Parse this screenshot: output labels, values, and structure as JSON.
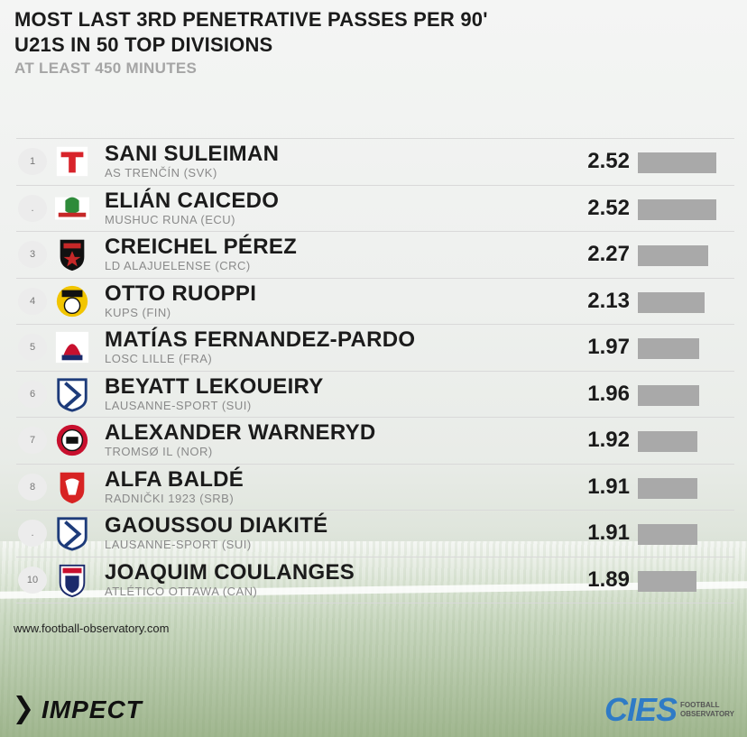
{
  "chart_data": {
    "type": "bar",
    "title": "MOST LAST 3RD PENETRATIVE PASSES PER 90'",
    "subtitle_lines": [
      "U21S IN 50 TOP DIVISIONS",
      "AT LEAST 450 MINUTES"
    ],
    "xlabel": "",
    "ylabel": "",
    "xlim": [
      0,
      2.52
    ],
    "rows": [
      {
        "rank": "1",
        "player": "SANI SULEIMAN",
        "club": "AS TRENČÍN (SVK)",
        "value": 2.52,
        "value_label": "2.52",
        "logo_icon": "as-trencin-logo-icon"
      },
      {
        "rank": ".",
        "player": "ELIÁN CAICEDO",
        "club": "MUSHUC RUNA (ECU)",
        "value": 2.52,
        "value_label": "2.52",
        "logo_icon": "mushuc-runa-logo-icon"
      },
      {
        "rank": "3",
        "player": "CREICHEL PÉREZ",
        "club": "LD ALAJUELENSE (CRC)",
        "value": 2.27,
        "value_label": "2.27",
        "logo_icon": "alajuelense-logo-icon"
      },
      {
        "rank": "4",
        "player": "OTTO RUOPPI",
        "club": "KUPS (FIN)",
        "value": 2.13,
        "value_label": "2.13",
        "logo_icon": "kups-logo-icon"
      },
      {
        "rank": "5",
        "player": "MATÍAS FERNANDEZ-PARDO",
        "club": "LOSC LILLE (FRA)",
        "value": 1.97,
        "value_label": "1.97",
        "logo_icon": "losc-lille-logo-icon"
      },
      {
        "rank": "6",
        "player": "BEYATT LEKOUEIRY",
        "club": "LAUSANNE-SPORT (SUI)",
        "value": 1.96,
        "value_label": "1.96",
        "logo_icon": "lausanne-sport-logo-icon"
      },
      {
        "rank": "7",
        "player": "ALEXANDER WARNERYD",
        "club": "TROMSØ IL (NOR)",
        "value": 1.92,
        "value_label": "1.92",
        "logo_icon": "tromso-il-logo-icon"
      },
      {
        "rank": "8",
        "player": "ALFA BALDÉ",
        "club": "RADNIČKI 1923 (SRB)",
        "value": 1.91,
        "value_label": "1.91",
        "logo_icon": "radnicki-1923-logo-icon"
      },
      {
        "rank": ".",
        "player": "GAOUSSOU DIAKITÉ",
        "club": "LAUSANNE-SPORT (SUI)",
        "value": 1.91,
        "value_label": "1.91",
        "logo_icon": "lausanne-sport-logo-icon"
      },
      {
        "rank": "10",
        "player": "JOAQUIM COULANGES",
        "club": "ATLÉTICO OTTAWA (CAN)",
        "value": 1.89,
        "value_label": "1.89",
        "logo_icon": "atletico-ottawa-logo-icon"
      }
    ],
    "bar_color": "#a9a9a9"
  },
  "footer": {
    "url": "www.football-observatory.com",
    "impect_label": "IMPECT",
    "cies_label": "CIES",
    "cies_sub_1": "FOOTBALL",
    "cies_sub_2": "OBSERVATORY"
  }
}
